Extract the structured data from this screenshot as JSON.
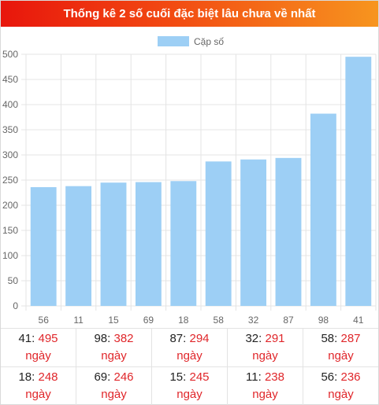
{
  "header": {
    "title": "Thống kê 2 số cuối đặc biệt lâu chưa về nhất"
  },
  "colors": {
    "bar": "#9dcff5",
    "grid": "#e4e4e4",
    "header_start": "#e8160c",
    "header_end": "#f7951f",
    "value_red": "#e0262a"
  },
  "chart_data": {
    "type": "bar",
    "categories": [
      "56",
      "11",
      "15",
      "69",
      "18",
      "58",
      "32",
      "87",
      "98",
      "41"
    ],
    "series": [
      {
        "name": "Cặp số",
        "values": [
          236,
          238,
          245,
          246,
          248,
          287,
          291,
          294,
          382,
          495
        ]
      }
    ],
    "ylim": [
      0,
      500
    ],
    "yticks": [
      "0",
      "50",
      "100",
      "150",
      "200",
      "250",
      "300",
      "350",
      "400",
      "450",
      "500"
    ],
    "grid": true,
    "legend": "top-center"
  },
  "stats": {
    "unit": "ngày",
    "rows": [
      [
        {
          "pair": "41",
          "days": "495"
        },
        {
          "pair": "98",
          "days": "382"
        },
        {
          "pair": "87",
          "days": "294"
        },
        {
          "pair": "32",
          "days": "291"
        },
        {
          "pair": "58",
          "days": "287"
        }
      ],
      [
        {
          "pair": "18",
          "days": "248"
        },
        {
          "pair": "69",
          "days": "246"
        },
        {
          "pair": "15",
          "days": "245"
        },
        {
          "pair": "11",
          "days": "238"
        },
        {
          "pair": "56",
          "days": "236"
        }
      ]
    ]
  }
}
